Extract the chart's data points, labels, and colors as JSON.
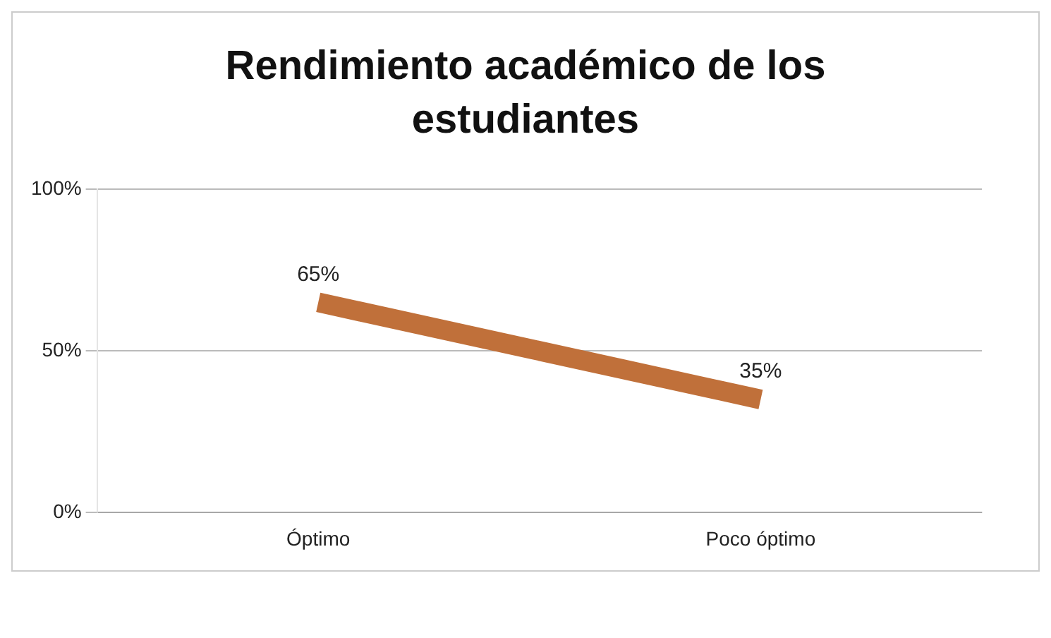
{
  "chart_data": {
    "type": "line",
    "title": "Rendimiento académico de los estudiantes",
    "categories": [
      "Óptimo",
      "Poco óptimo"
    ],
    "series": [
      {
        "color": "#c0703a",
        "values": [
          65,
          35
        ]
      }
    ],
    "value_labels": [
      "65%",
      "35%"
    ],
    "ylim": [
      0,
      100
    ],
    "yticks": [
      {
        "value": 0,
        "label": "0%"
      },
      {
        "value": 50,
        "label": "50%"
      },
      {
        "value": 100,
        "label": "100%"
      }
    ],
    "grid": "y",
    "legend": false,
    "marker": "none",
    "line_style": "solid"
  }
}
